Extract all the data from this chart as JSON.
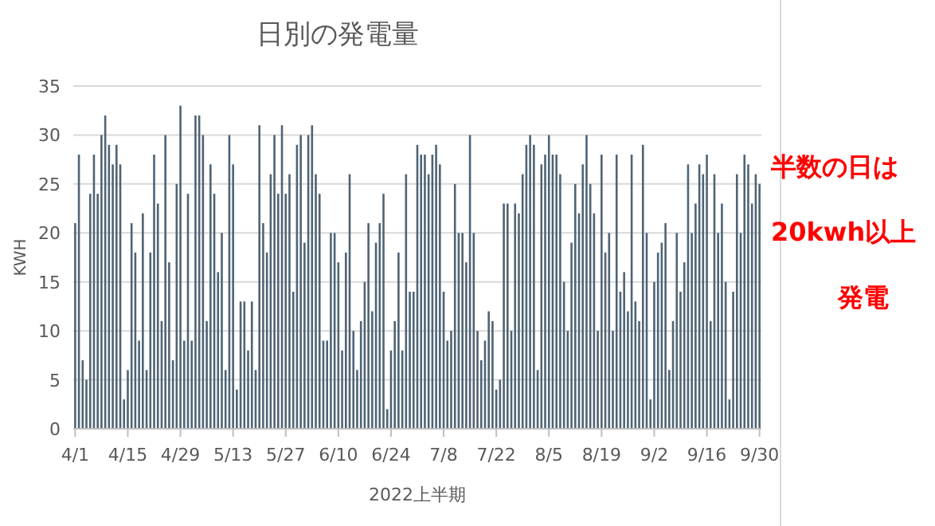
{
  "chart_data": {
    "type": "bar",
    "title": "日別の発電量",
    "xlabel": "2022上半期",
    "ylabel": "KWH",
    "annotations": [
      "半数の日は",
      "20kwh以上",
      "発電"
    ],
    "categories": [
      "4/1",
      null,
      null,
      null,
      null,
      null,
      null,
      null,
      null,
      null,
      null,
      null,
      null,
      null,
      "4/15",
      null,
      null,
      null,
      null,
      null,
      null,
      null,
      null,
      null,
      null,
      null,
      null,
      null,
      "4/29",
      null,
      null,
      null,
      null,
      null,
      null,
      null,
      null,
      null,
      null,
      null,
      null,
      null,
      "5/13",
      null,
      null,
      null,
      null,
      null,
      null,
      null,
      null,
      null,
      null,
      null,
      null,
      null,
      "5/27",
      null,
      null,
      null,
      null,
      null,
      null,
      null,
      null,
      null,
      null,
      null,
      null,
      null,
      "6/10",
      null,
      null,
      null,
      null,
      null,
      null,
      null,
      null,
      null,
      null,
      null,
      null,
      null,
      "6/24",
      null,
      null,
      null,
      null,
      null,
      null,
      null,
      null,
      null,
      null,
      null,
      null,
      null,
      "7/8",
      null,
      null,
      null,
      null,
      null,
      null,
      null,
      null,
      null,
      null,
      null,
      null,
      null,
      "7/22",
      null,
      null,
      null,
      null,
      null,
      null,
      null,
      null,
      null,
      null,
      null,
      null,
      null,
      "8/5",
      null,
      null,
      null,
      null,
      null,
      null,
      null,
      null,
      null,
      null,
      null,
      null,
      null,
      "8/19",
      null,
      null,
      null,
      null,
      null,
      null,
      null,
      null,
      null,
      null,
      null,
      null,
      null,
      "9/2",
      null,
      null,
      null,
      null,
      null,
      null,
      null,
      null,
      null,
      null,
      null,
      null,
      null,
      "9/16",
      null,
      null,
      null,
      null,
      null,
      null,
      null,
      null,
      null,
      null,
      null,
      null,
      null,
      "9/30"
    ],
    "values": [
      21,
      28,
      7,
      5,
      24,
      28,
      24,
      30,
      32,
      29,
      27,
      29,
      27,
      3,
      6,
      21,
      18,
      9,
      22,
      6,
      18,
      28,
      23,
      11,
      30,
      17,
      7,
      25,
      33,
      9,
      24,
      9,
      32,
      32,
      30,
      11,
      27,
      24,
      16,
      20,
      6,
      30,
      27,
      4,
      13,
      13,
      8,
      13,
      6,
      31,
      21,
      18,
      26,
      30,
      24,
      31,
      24,
      26,
      14,
      29,
      30,
      19,
      30,
      31,
      26,
      24,
      9,
      9,
      20,
      20,
      17,
      8,
      18,
      26,
      10,
      6,
      11,
      15,
      21,
      12,
      19,
      21,
      24,
      2,
      8,
      11,
      18,
      8,
      26,
      14,
      14,
      29,
      28,
      28,
      26,
      28,
      29,
      27,
      14,
      9,
      10,
      25,
      20,
      20,
      17,
      30,
      20,
      10,
      7,
      9,
      12,
      11,
      4,
      5,
      23,
      23,
      10,
      23,
      22,
      26,
      29,
      30,
      29,
      6,
      27,
      28,
      30,
      28,
      28,
      26,
      15,
      10,
      19,
      25,
      22,
      27,
      30,
      25,
      22,
      10,
      28,
      18,
      20,
      10,
      28,
      14,
      16,
      12,
      28,
      13,
      11,
      29,
      20,
      3,
      15,
      18,
      19,
      21,
      6,
      11,
      20,
      14,
      17,
      27,
      20,
      23,
      27,
      26,
      28,
      11,
      26,
      20,
      23,
      15,
      3,
      14,
      26,
      20,
      28,
      27,
      23,
      26,
      25
    ],
    "color": "#4f6475",
    "ylim": [
      0,
      35
    ],
    "yticks": [
      0,
      5,
      10,
      15,
      20,
      25,
      30,
      35
    ],
    "grid": "y"
  }
}
